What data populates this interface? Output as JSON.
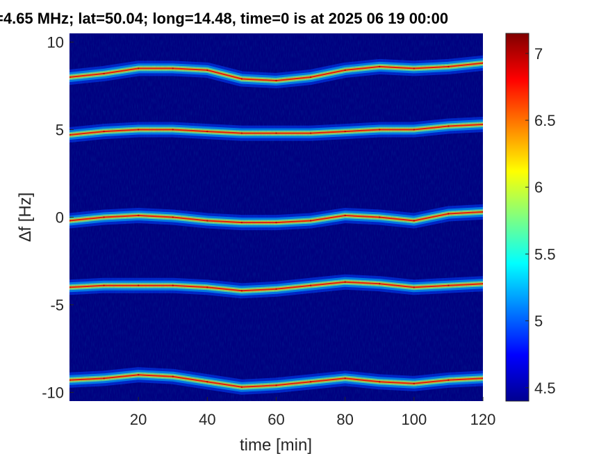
{
  "chart_data": [
    {
      "type": "heatmap",
      "title": "=4.65 MHz;  lat=50.04; long=14.48, time=0 is at 2025 06 19 00:00",
      "xlabel": "time [min]",
      "ylabel": "∆f [Hz]",
      "xlim": [
        0,
        120
      ],
      "ylim": [
        -10.5,
        10.5
      ],
      "xticks": [
        20,
        40,
        60,
        80,
        100,
        120
      ],
      "xtick_labels": [
        "20",
        "40",
        "60",
        "80",
        "100",
        "120"
      ],
      "yticks": [
        -10,
        -5,
        0,
        5,
        10
      ],
      "ytick_labels": [
        "-10",
        "-5",
        "0",
        "5",
        "10"
      ],
      "grid": false,
      "background_color": "#000080",
      "series": [
        {
          "x": [
            0,
            10,
            20,
            30,
            40,
            50,
            60,
            70,
            80,
            90,
            100,
            110,
            120
          ],
          "y": [
            8.0,
            8.2,
            8.5,
            8.5,
            8.4,
            7.9,
            7.8,
            8.0,
            8.4,
            8.6,
            8.5,
            8.6,
            8.8
          ]
        },
        {
          "x": [
            0,
            10,
            20,
            30,
            40,
            50,
            60,
            70,
            80,
            90,
            100,
            110,
            120
          ],
          "y": [
            4.7,
            4.9,
            5.0,
            5.0,
            4.9,
            4.8,
            4.8,
            4.8,
            4.9,
            5.0,
            5.0,
            5.2,
            5.3
          ]
        },
        {
          "x": [
            0,
            10,
            20,
            30,
            40,
            50,
            60,
            70,
            80,
            90,
            100,
            110,
            120
          ],
          "y": [
            -0.2,
            0.0,
            0.1,
            0.0,
            -0.2,
            -0.3,
            -0.3,
            -0.2,
            0.1,
            0.0,
            -0.2,
            0.2,
            0.3
          ]
        },
        {
          "x": [
            0,
            10,
            20,
            30,
            40,
            50,
            60,
            70,
            80,
            90,
            100,
            110,
            120
          ],
          "y": [
            -4.0,
            -3.9,
            -3.9,
            -3.9,
            -4.0,
            -4.2,
            -4.1,
            -3.9,
            -3.7,
            -3.8,
            -4.0,
            -3.9,
            -3.8
          ]
        },
        {
          "x": [
            0,
            10,
            20,
            30,
            40,
            50,
            60,
            70,
            80,
            90,
            100,
            110,
            120
          ],
          "y": [
            -9.3,
            -9.2,
            -9.0,
            -9.1,
            -9.4,
            -9.7,
            -9.6,
            -9.4,
            -9.2,
            -9.4,
            -9.5,
            -9.3,
            -9.2
          ]
        }
      ]
    },
    {
      "type": "colorbar",
      "ylim": [
        4.4,
        7.15
      ],
      "ticks": [
        4.5,
        5,
        5.5,
        6,
        6.5,
        7
      ],
      "tick_labels": [
        "4.5",
        "5",
        "5.5",
        "6",
        "6.5",
        "7"
      ],
      "colormap": [
        "#00008F",
        "#0000FF",
        "#0080FF",
        "#00FFFF",
        "#80FF80",
        "#FFFF00",
        "#FF8000",
        "#FF0000",
        "#800000"
      ]
    }
  ]
}
